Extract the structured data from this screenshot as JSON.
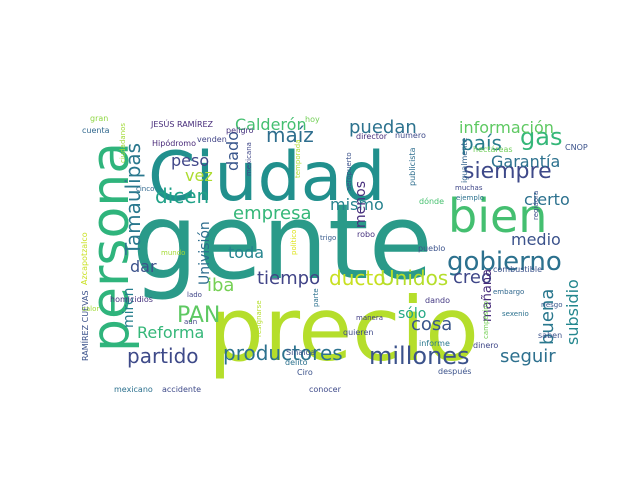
{
  "word_cloud": {
    "words": [
      {
        "text": "gente",
        "color": "#2a9a89"
      },
      {
        "text": "precio",
        "color": "#b5de2b"
      },
      {
        "text": "Ciudad",
        "color": "#21908d"
      },
      {
        "text": "persona",
        "color": "#2fb47c"
      },
      {
        "text": "bien",
        "color": "#44bf70"
      },
      {
        "text": "gobierno",
        "color": "#2c718e"
      },
      {
        "text": "millones",
        "color": "#3b528b"
      },
      {
        "text": "productores",
        "color": "#2c728e"
      },
      {
        "text": "partido",
        "color": "#3e4a89"
      },
      {
        "text": "Tamaulipas",
        "color": "#2a788e"
      },
      {
        "text": "siempre",
        "color": "#3e4989"
      },
      {
        "text": "gas",
        "color": "#35b779"
      },
      {
        "text": "PAN",
        "color": "#5ec962"
      },
      {
        "text": "maíz",
        "color": "#2e6e8e"
      },
      {
        "text": "empresa",
        "color": "#35b779"
      },
      {
        "text": "ducto",
        "color": "#c8e020"
      },
      {
        "text": "dicen",
        "color": "#1fa187"
      },
      {
        "text": "país",
        "color": "#287d8e"
      },
      {
        "text": "puedan",
        "color": "#2c728e"
      },
      {
        "text": "Unidos",
        "color": "#b5de2b"
      },
      {
        "text": "información",
        "color": "#5ec962"
      },
      {
        "text": "Garantía",
        "color": "#2c718e"
      },
      {
        "text": "creo",
        "color": "#3f4788"
      },
      {
        "text": "buena",
        "color": "#2a788e"
      },
      {
        "text": "subsidio",
        "color": "#24878e"
      },
      {
        "text": "seguir",
        "color": "#2d708e"
      },
      {
        "text": "cosa",
        "color": "#39568c"
      },
      {
        "text": "Reforma",
        "color": "#35b779"
      },
      {
        "text": "tiempo",
        "color": "#414487"
      },
      {
        "text": "Calderón",
        "color": "#44bf70"
      },
      {
        "text": "peso",
        "color": "#404688"
      },
      {
        "text": "toda",
        "color": "#25848e"
      },
      {
        "text": "dado",
        "color": "#39568c"
      },
      {
        "text": "vez",
        "color": "#addc30"
      },
      {
        "text": "dar",
        "color": "#3b528b"
      },
      {
        "text": "mismo",
        "color": "#26828e"
      },
      {
        "text": "medio",
        "color": "#3b528b"
      },
      {
        "text": "cierto",
        "color": "#2c718e"
      },
      {
        "text": "mañana",
        "color": "#472c7a"
      },
      {
        "text": "iba",
        "color": "#75d054"
      },
      {
        "text": "miren",
        "color": "#277f8e"
      },
      {
        "text": "menos",
        "color": "#472f7d"
      },
      {
        "text": "sólo",
        "color": "#22a884"
      },
      {
        "text": "Univisión",
        "color": "#2e6e8e"
      },
      {
        "text": "JESÚS RAMÍREZ",
        "color": "#472c7a"
      },
      {
        "text": "RAMÍREZ CUEVAS",
        "color": "#3b528b"
      },
      {
        "text": "Azcapotzalco",
        "color": "#c8e020"
      },
      {
        "text": "Hipódromo",
        "color": "#482878"
      },
      {
        "text": "ciudadanos",
        "color": "#a2da37"
      },
      {
        "text": "cuenta",
        "color": "#31688e"
      },
      {
        "text": "gran",
        "color": "#8fd744"
      },
      {
        "text": "cinco",
        "color": "#31688e"
      },
      {
        "text": "venden",
        "color": "#414487"
      },
      {
        "text": "peligro",
        "color": "#46327e"
      },
      {
        "text": "hoy",
        "color": "#73d056"
      },
      {
        "text": "mexicana",
        "color": "#3f4788"
      },
      {
        "text": "temporada",
        "color": "#b0dd2f"
      },
      {
        "text": "aeropuerto",
        "color": "#3b528b"
      },
      {
        "text": "director",
        "color": "#472d7b"
      },
      {
        "text": "número",
        "color": "#3e4a89"
      },
      {
        "text": "publicista",
        "color": "#2e6e8e"
      },
      {
        "text": "igualmente",
        "color": "#33638d"
      },
      {
        "text": "hectáreas",
        "color": "#6ece58"
      },
      {
        "text": "CNOP",
        "color": "#3b528b"
      },
      {
        "text": "muchas",
        "color": "#3f4788"
      },
      {
        "text": "ejemplo",
        "color": "#2c728e"
      },
      {
        "text": "regidora",
        "color": "#3b528b"
      },
      {
        "text": "dónde",
        "color": "#46c06f"
      },
      {
        "text": "robo",
        "color": "#46327e"
      },
      {
        "text": "trigo",
        "color": "#375a8c"
      },
      {
        "text": "político",
        "color": "#dde318"
      },
      {
        "text": "mundo",
        "color": "#a5db36"
      },
      {
        "text": "calor",
        "color": "#a2da37"
      },
      {
        "text": "pueblo",
        "color": "#3b528b"
      },
      {
        "text": "combustible",
        "color": "#3b528b"
      },
      {
        "text": "embargo",
        "color": "#31688e"
      },
      {
        "text": "riesgo",
        "color": "#39568c"
      },
      {
        "text": "sexenio",
        "color": "#2c718e"
      },
      {
        "text": "lado",
        "color": "#404688"
      },
      {
        "text": "aún",
        "color": "#414487"
      },
      {
        "text": "homicidios",
        "color": "#46327e"
      },
      {
        "text": "parte",
        "color": "#2c718e"
      },
      {
        "text": "manera",
        "color": "#433e85"
      },
      {
        "text": "Sinaloa",
        "color": "#3b528b"
      },
      {
        "text": "delito",
        "color": "#2c718e"
      },
      {
        "text": "Ciro",
        "color": "#3b528b"
      },
      {
        "text": "quieren",
        "color": "#3e4a89"
      },
      {
        "text": "informe",
        "color": "#2a788e"
      },
      {
        "text": "dinero",
        "color": "#3f4788"
      },
      {
        "text": "dando",
        "color": "#443983"
      },
      {
        "text": "después",
        "color": "#3b528b"
      },
      {
        "text": "campesino",
        "color": "#75d054"
      },
      {
        "text": "saben",
        "color": "#3b528b"
      },
      {
        "text": "resignarse",
        "color": "#b5de2b"
      },
      {
        "text": "conocer",
        "color": "#3e4a89"
      },
      {
        "text": "mexicano",
        "color": "#2c718e"
      },
      {
        "text": "accidente",
        "color": "#3e4a89"
      }
    ]
  }
}
